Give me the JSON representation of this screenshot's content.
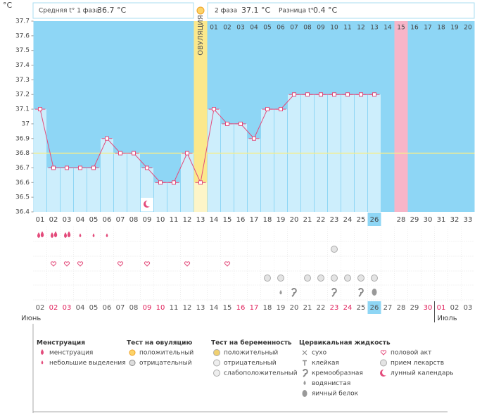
{
  "header": {
    "unit": "°C",
    "phase1_label": "Средняя t° 1 фаза",
    "phase1_value": "36.7 °C",
    "phase2_label": "2 фаза",
    "phase2_value": "37.1 °C",
    "diff_label": "Разница t°",
    "diff_value": "0.4 °C",
    "ovulation": "ОВУЛЯЦИЯ"
  },
  "chart_data": {
    "type": "line",
    "color": "#e34b7b",
    "categories": [
      "01",
      "02",
      "03",
      "04",
      "05",
      "06",
      "07",
      "08",
      "09",
      "10",
      "11",
      "12",
      "13",
      "14",
      "15",
      "16",
      "17",
      "18",
      "19",
      "20",
      "21",
      "22",
      "23",
      "24",
      "25",
      "26",
      null,
      "28",
      "29",
      "30",
      "31",
      "32",
      "33"
    ],
    "phase2_days": [
      null,
      null,
      null,
      null,
      null,
      null,
      null,
      null,
      null,
      null,
      null,
      null,
      null,
      "01",
      "02",
      "03",
      "04",
      "05",
      "06",
      "07",
      "08",
      "09",
      "10",
      "11",
      "12",
      "13",
      "14",
      "15",
      "16",
      "17",
      "18",
      "19",
      "20"
    ],
    "values": [
      37.1,
      36.7,
      36.7,
      36.7,
      36.7,
      36.9,
      36.8,
      36.8,
      36.7,
      36.6,
      36.6,
      36.8,
      36.6,
      37.1,
      37.0,
      37.0,
      36.9,
      37.1,
      37.1,
      37.2,
      37.2,
      37.2,
      37.2,
      37.2,
      37.2,
      37.2,
      null,
      null,
      null,
      null,
      null,
      null,
      null
    ],
    "ylim": [
      36.4,
      37.7
    ],
    "yticks": [
      36.4,
      36.5,
      36.6,
      36.7,
      36.8,
      36.9,
      37,
      37.1,
      37.2,
      37.3,
      37.4,
      37.5,
      37.6,
      37.7
    ],
    "coverline": 36.8
  },
  "calendar": {
    "dates": [
      "02",
      "02",
      "03",
      "04",
      "05",
      "06",
      "07",
      "08",
      "09",
      "10",
      "11",
      "12",
      "13",
      "14",
      "15",
      "16",
      "17",
      "18",
      "19",
      "20",
      "21",
      "22",
      "23",
      "24",
      "25",
      "26",
      "27",
      "28",
      "29",
      "30",
      "01",
      "02",
      "03"
    ],
    "colors": [
      "#555",
      "#e0245e",
      "#e0245e",
      "#555",
      "#555",
      "#555",
      "#555",
      "#555",
      "#e0245e",
      "#e0245e",
      "#555",
      "#555",
      "#555",
      "#555",
      "#555",
      "#e0245e",
      "#e0245e",
      "#555",
      "#555",
      "#555",
      "#555",
      "#555",
      "#e0245e",
      "#e0245e",
      "#555",
      "#555",
      "#555",
      "#555",
      "#555",
      "#e0245e",
      "#e0245e",
      "#555",
      "#555"
    ],
    "month1": "Июнь",
    "month2": "Июль"
  },
  "legend": {
    "groups": [
      {
        "title": "Менструация",
        "items": [
          "менструация",
          "небольшие выделения"
        ]
      },
      {
        "title": "Тест на овуляцию",
        "items": [
          "положительный",
          "отрицательный"
        ]
      },
      {
        "title": "Тест на беременность",
        "items": [
          "положительный",
          "отрицательный",
          "слабоположительный"
        ]
      },
      {
        "title": "Цервикальная жидкость",
        "items": [
          "сухо",
          "клейкая",
          "кремообразная",
          "водянистая",
          "яичный белок"
        ]
      }
    ],
    "other": [
      "половой акт",
      "прием лекарств",
      "лунный календарь"
    ]
  }
}
